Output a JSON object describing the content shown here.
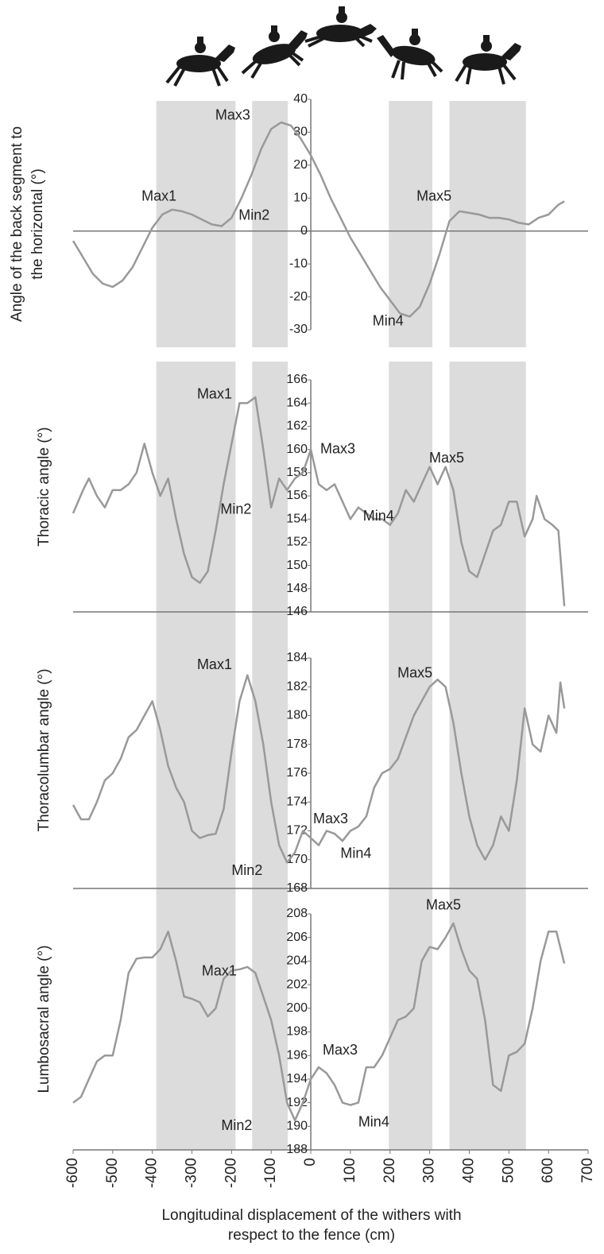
{
  "chart_data": [
    {
      "type": "line",
      "y_label": [
        "Angle of the back segment to",
        "the horizontal (°)"
      ],
      "xlim": [
        -600,
        700
      ],
      "ylim": [
        -30,
        40
      ],
      "yticks": [
        -30,
        -20,
        -10,
        0,
        10,
        20,
        30,
        40
      ],
      "bands": [
        [
          -390,
          -190
        ],
        [
          -148,
          -58
        ],
        [
          197,
          307
        ],
        [
          350,
          543
        ]
      ],
      "color": "#999999",
      "x": [
        -600,
        -575,
        -550,
        -525,
        -500,
        -475,
        -450,
        -425,
        -400,
        -375,
        -350,
        -325,
        -300,
        -275,
        -250,
        -225,
        -200,
        -175,
        -150,
        -125,
        -100,
        -75,
        -50,
        -25,
        0,
        25,
        50,
        75,
        100,
        125,
        150,
        175,
        200,
        225,
        250,
        275,
        300,
        325,
        350,
        375,
        400,
        425,
        450,
        475,
        500,
        525,
        550,
        575,
        600,
        625,
        640
      ],
      "values": [
        -3,
        -8,
        -13,
        -16,
        -17,
        -15,
        -11,
        -5,
        1,
        5,
        6.5,
        6,
        5,
        3.5,
        2,
        1.5,
        4,
        10,
        17,
        25,
        31,
        33,
        32,
        28,
        23,
        17,
        10,
        4,
        -2,
        -7,
        -12,
        -17,
        -21,
        -25,
        -26,
        -23,
        -16,
        -7,
        3,
        6,
        5.5,
        5,
        4,
        4,
        3.5,
        2.5,
        2,
        4,
        5,
        8,
        9
      ],
      "annotations": [
        {
          "text": "Max1",
          "x": -383,
          "y": 10.4
        },
        {
          "text": "Min2",
          "x": -143,
          "y": 4.6
        },
        {
          "text": "Max3",
          "x": -197,
          "y": 35
        },
        {
          "text": "Min4",
          "x": 195,
          "y": -27.5
        },
        {
          "text": "Max5",
          "x": 311,
          "y": 10.4
        }
      ]
    },
    {
      "type": "line",
      "y_label": [
        "Thoracic angle (°)"
      ],
      "xlim": [
        -600,
        700
      ],
      "ylim": [
        146,
        166
      ],
      "yticks": [
        146,
        148,
        150,
        152,
        154,
        156,
        158,
        160,
        162,
        164,
        166
      ],
      "bands": [
        [
          -390,
          -190
        ],
        [
          -148,
          -58
        ],
        [
          197,
          307
        ],
        [
          350,
          543
        ]
      ],
      "color": "#999999",
      "x": [
        -600,
        -575,
        -560,
        -540,
        -520,
        -500,
        -480,
        -460,
        -440,
        -420,
        -400,
        -380,
        -360,
        -340,
        -320,
        -300,
        -280,
        -260,
        -240,
        -220,
        -200,
        -180,
        -160,
        -140,
        -120,
        -100,
        -80,
        -60,
        -40,
        -20,
        0,
        20,
        40,
        60,
        80,
        100,
        120,
        140,
        160,
        180,
        200,
        220,
        240,
        260,
        280,
        300,
        320,
        340,
        360,
        380,
        400,
        420,
        440,
        460,
        480,
        500,
        520,
        540,
        560,
        570,
        590,
        610,
        625,
        640
      ],
      "values": [
        154.5,
        156.5,
        157.5,
        156,
        155,
        156.5,
        156.5,
        157,
        158,
        160.5,
        158,
        156,
        157.5,
        154,
        151,
        149,
        148.5,
        149.5,
        153,
        157,
        160.5,
        164,
        164,
        164.5,
        160,
        155,
        157.5,
        156.5,
        157.5,
        158,
        160,
        157,
        156.5,
        157,
        155.5,
        154,
        155,
        154.5,
        154,
        154,
        153.5,
        154.5,
        156.5,
        155.5,
        157,
        158.5,
        157,
        158.5,
        156.5,
        152,
        149.5,
        149,
        151,
        153,
        153.5,
        155.5,
        155.5,
        152.5,
        154,
        156,
        154,
        153.5,
        153,
        146.5
      ],
      "annotations": [
        {
          "text": "Max1",
          "x": -243,
          "y": 164.7
        },
        {
          "text": "Min2",
          "x": -189,
          "y": 154.8
        },
        {
          "text": "Max3",
          "x": 68,
          "y": 160
        },
        {
          "text": "Min4",
          "x": 171,
          "y": 154.2
        },
        {
          "text": "Max5",
          "x": 343,
          "y": 159.2
        }
      ]
    },
    {
      "type": "line",
      "y_label": [
        "Thoracolumbar angle (°)"
      ],
      "xlim": [
        -600,
        700
      ],
      "ylim": [
        168,
        184
      ],
      "yticks": [
        168,
        170,
        172,
        174,
        176,
        178,
        180,
        182,
        184
      ],
      "bands": [
        [
          -390,
          -190
        ],
        [
          -148,
          -58
        ],
        [
          197,
          307
        ],
        [
          350,
          543
        ]
      ],
      "color": "#999999",
      "x": [
        -600,
        -580,
        -560,
        -540,
        -520,
        -500,
        -480,
        -460,
        -440,
        -420,
        -400,
        -380,
        -360,
        -340,
        -320,
        -300,
        -280,
        -260,
        -240,
        -220,
        -200,
        -180,
        -160,
        -140,
        -120,
        -100,
        -80,
        -60,
        -40,
        -20,
        0,
        20,
        40,
        60,
        80,
        100,
        120,
        140,
        160,
        180,
        200,
        220,
        240,
        260,
        280,
        300,
        320,
        340,
        360,
        380,
        400,
        420,
        440,
        460,
        480,
        500,
        520,
        540,
        560,
        580,
        600,
        620,
        630,
        640
      ],
      "values": [
        173.8,
        172.8,
        172.8,
        174,
        175.5,
        176,
        177,
        178.5,
        179,
        180,
        181,
        179,
        176.5,
        175,
        174,
        172,
        171.5,
        171.7,
        171.8,
        173.5,
        177.5,
        181,
        182.8,
        181,
        178,
        174,
        171,
        169.8,
        170.5,
        172,
        171.5,
        171,
        172,
        171.8,
        171.3,
        172,
        172.3,
        173,
        175,
        176,
        176.3,
        177,
        178.5,
        180,
        181,
        182,
        182.5,
        182,
        179.5,
        176,
        173,
        171,
        170,
        171,
        173,
        172,
        175.5,
        180.5,
        178,
        177.5,
        180,
        178.8,
        182.3,
        180.5
      ],
      "annotations": [
        {
          "text": "Max1",
          "x": -243,
          "y": 183.5
        },
        {
          "text": "Min2",
          "x": -161,
          "y": 169.2
        },
        {
          "text": "Max3",
          "x": 50,
          "y": 172.8
        },
        {
          "text": "Min4",
          "x": 114,
          "y": 170.4
        },
        {
          "text": "Max5",
          "x": 263,
          "y": 182.9
        }
      ]
    },
    {
      "type": "line",
      "y_label": [
        "Lumbosacral angle (°)"
      ],
      "x_label": [
        "Longitudinal displacement of the withers with",
        "respect to the fence (cm)"
      ],
      "xlim": [
        -600,
        700
      ],
      "xticks": [
        -600,
        -500,
        -400,
        -300,
        -200,
        -100,
        0,
        100,
        200,
        300,
        400,
        500,
        600,
        700
      ],
      "ylim": [
        188,
        208
      ],
      "yticks": [
        188,
        190,
        192,
        194,
        196,
        198,
        200,
        202,
        204,
        206,
        208
      ],
      "bands": [
        [
          -390,
          -190
        ],
        [
          -148,
          -58
        ],
        [
          197,
          307
        ],
        [
          350,
          543
        ]
      ],
      "color": "#999999",
      "x": [
        -600,
        -580,
        -560,
        -540,
        -520,
        -500,
        -480,
        -460,
        -440,
        -420,
        -400,
        -380,
        -360,
        -340,
        -320,
        -300,
        -280,
        -260,
        -240,
        -220,
        -200,
        -180,
        -160,
        -140,
        -120,
        -100,
        -80,
        -60,
        -40,
        -20,
        0,
        20,
        40,
        60,
        80,
        100,
        120,
        140,
        160,
        180,
        200,
        220,
        240,
        260,
        280,
        300,
        320,
        340,
        360,
        380,
        400,
        420,
        440,
        460,
        480,
        500,
        520,
        540,
        560,
        580,
        600,
        620,
        640
      ],
      "values": [
        192,
        192.5,
        194,
        195.5,
        196,
        196,
        199,
        203,
        204.2,
        204.3,
        204.3,
        205,
        206.5,
        204,
        201,
        200.8,
        200.5,
        199.3,
        200,
        202.5,
        203.2,
        203.3,
        203.5,
        203,
        201,
        199,
        196,
        192,
        190.5,
        192,
        194,
        195,
        194.5,
        193.5,
        192,
        191.8,
        192,
        195,
        195,
        196,
        197.5,
        199,
        199.3,
        200,
        204,
        205.2,
        205,
        206,
        207.2,
        205,
        203.2,
        202.5,
        199,
        193.5,
        193,
        196,
        196.3,
        197,
        200,
        204,
        206.5,
        206.5,
        203.8
      ],
      "annotations": [
        {
          "text": "Max1",
          "x": -231,
          "y": 203.1
        },
        {
          "text": "Min2",
          "x": -187,
          "y": 190
        },
        {
          "text": "Max3",
          "x": 74,
          "y": 196.4
        },
        {
          "text": "Min4",
          "x": 159,
          "y": 190.3
        },
        {
          "text": "Max5",
          "x": 335,
          "y": 208.7
        }
      ]
    }
  ]
}
